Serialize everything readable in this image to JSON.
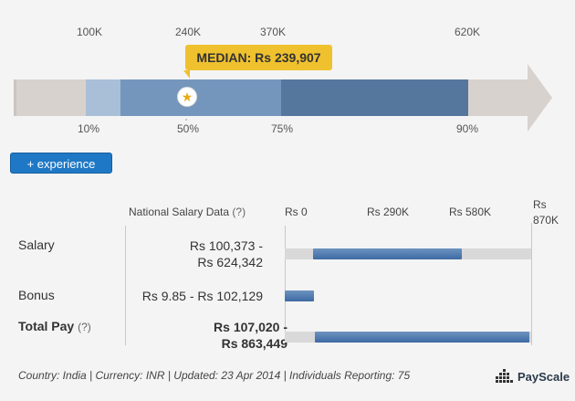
{
  "distribution": {
    "top_ticks": [
      "100K",
      "240K",
      "370K",
      "620K"
    ],
    "bottom_ticks": [
      "10%",
      "50%",
      "75%",
      "90%"
    ],
    "median_label": "MEDIAN: Rs 239,907"
  },
  "experience_button": "+ experience",
  "table": {
    "header": {
      "national": "National Salary Data",
      "help": "(?)",
      "scale": [
        "Rs 0",
        "Rs 290K",
        "Rs 580K"
      ],
      "scale_last_line1": "Rs",
      "scale_last_line2": "870K"
    },
    "scale_max": 870000,
    "rows": [
      {
        "label": "Salary",
        "help": "",
        "range_line1": "Rs 100,373 -",
        "range_line2": "Rs 624,342",
        "low": 100373,
        "high": 624342
      },
      {
        "label": "Bonus",
        "help": "",
        "range_line1": "Rs 9.85 - Rs 102,129",
        "range_line2": "",
        "low": 9.85,
        "high": 102129
      },
      {
        "label": "Total Pay",
        "help": "(?)",
        "range_line1": "Rs 107,020 -",
        "range_line2": "Rs 863,449",
        "low": 107020,
        "high": 863449
      }
    ]
  },
  "footer": "Country: India | Currency: INR | Updated: 23 Apr 2014 | Individuals Reporting: 75",
  "logo": "PayScale",
  "colors": {
    "median": "#efc12e",
    "button": "#1f78c5",
    "bar": "#4a73aa"
  }
}
